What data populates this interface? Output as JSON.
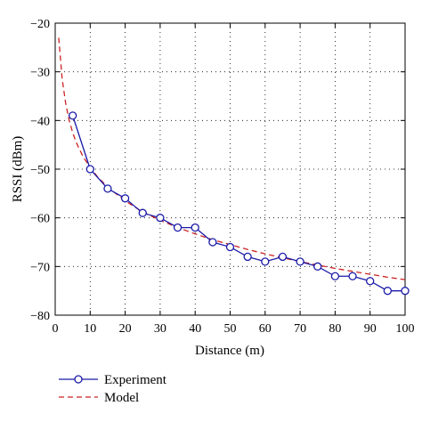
{
  "chart_data": {
    "type": "line",
    "xlabel": "Distance (m)",
    "ylabel": "RSSI (dBm)",
    "xlim": [
      0,
      100
    ],
    "ylim": [
      -80,
      -20
    ],
    "xticks": [
      0,
      10,
      20,
      30,
      40,
      50,
      60,
      70,
      80,
      90,
      100
    ],
    "yticks": [
      -80,
      -70,
      -60,
      -50,
      -40,
      -30,
      -20
    ],
    "grid": true,
    "legend_position": "bottom-left",
    "series": [
      {
        "name": "Experiment",
        "color": "#1a1aa8",
        "style": "solid",
        "marker": "circle",
        "x": [
          5,
          10,
          15,
          20,
          25,
          30,
          35,
          40,
          45,
          50,
          55,
          60,
          65,
          70,
          75,
          80,
          85,
          90,
          95,
          100
        ],
        "y": [
          -39,
          -50,
          -54,
          -56,
          -59,
          -60,
          -62,
          -62,
          -65,
          -66,
          -68,
          -69,
          -68,
          -69,
          -70,
          -72,
          -72,
          -73,
          -75,
          -75
        ]
      },
      {
        "name": "Model",
        "color": "#cc2222",
        "style": "dashed",
        "marker": "none",
        "x": [
          1,
          2,
          3,
          4,
          5,
          6,
          8,
          10,
          12,
          15,
          20,
          25,
          30,
          35,
          40,
          45,
          50,
          55,
          60,
          65,
          70,
          75,
          80,
          85,
          90,
          95,
          100
        ],
        "y": [
          -23,
          -31.5,
          -36.5,
          -40,
          -42.5,
          -44.5,
          -47.5,
          -49.6,
          -51.5,
          -53.7,
          -56.5,
          -58.8,
          -60.5,
          -62,
          -63.3,
          -64.5,
          -65.5,
          -66.5,
          -67.4,
          -68.2,
          -69,
          -69.7,
          -70.4,
          -71,
          -71.6,
          -72.2,
          -72.7
        ]
      }
    ]
  }
}
